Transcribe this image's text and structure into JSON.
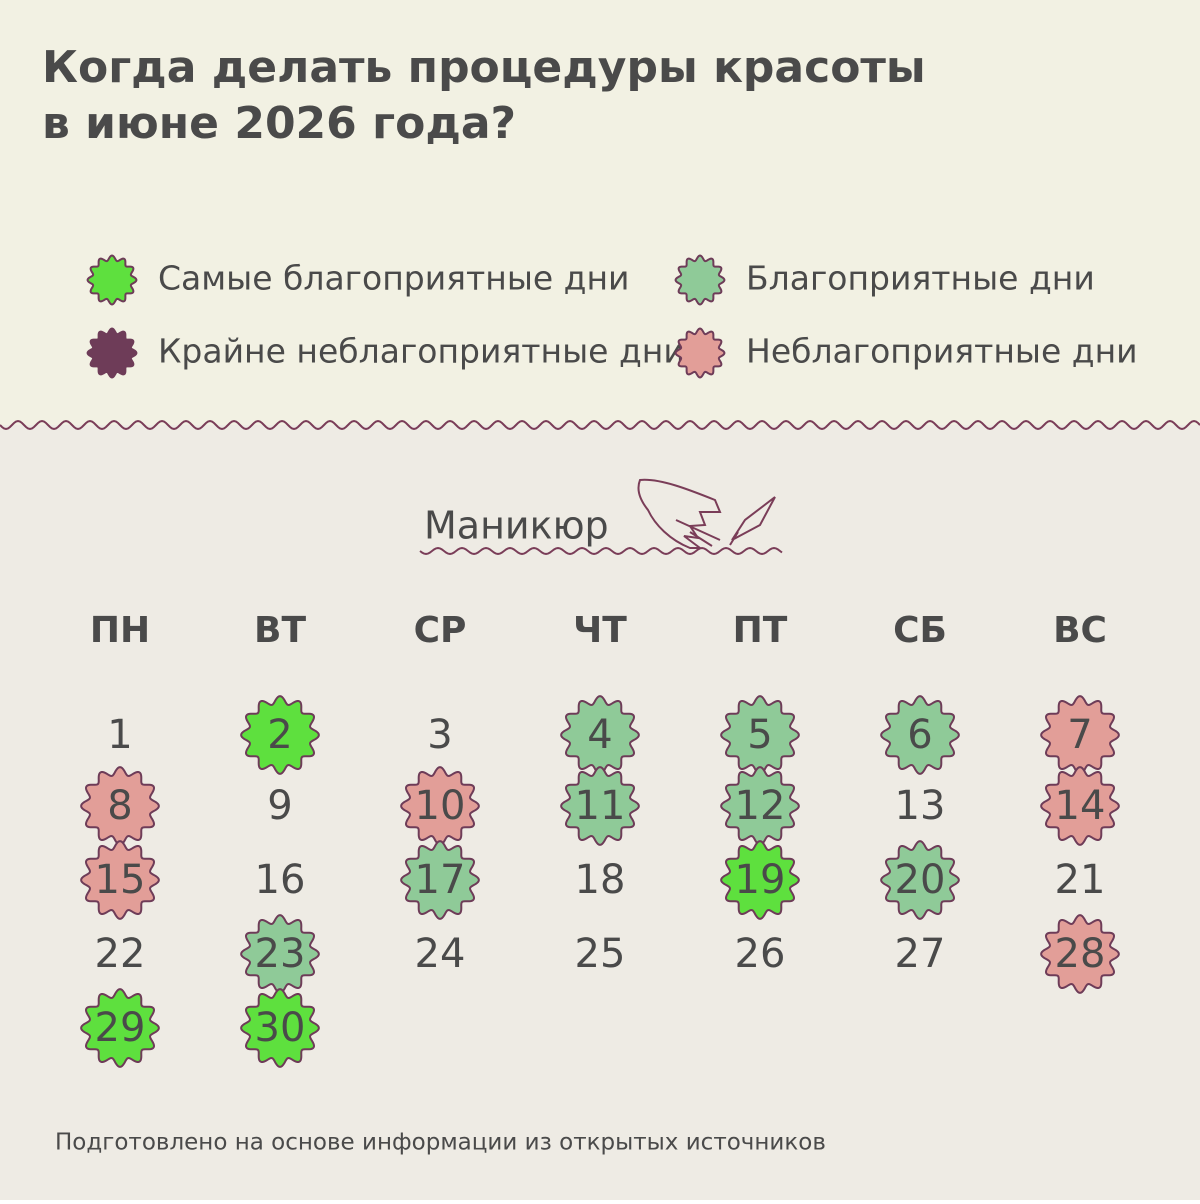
{
  "header": {
    "title": [
      "Когда делать процедуры красоты",
      "в июне 2026 года?"
    ]
  },
  "legend": [
    {
      "label": "Самые благоприятные дни",
      "color": "#5ee03e"
    },
    {
      "label": "Благоприятные дни",
      "color": "#8fca98"
    },
    {
      "label": "Крайне неблагоприятные дни",
      "color": "#6e3c58"
    },
    {
      "label": "Неблагоприятные дни",
      "color": "#e29e98"
    }
  ],
  "section": {
    "title": "Маникюр"
  },
  "weekdays": [
    "ПН",
    "ВТ",
    "СР",
    "ЧТ",
    "ПТ",
    "СБ",
    "ВС"
  ],
  "calendar": {
    "weeks": [
      [
        {
          "day": 1
        },
        {
          "day": 2,
          "color": "#5ee03e"
        },
        {
          "day": 3
        },
        {
          "day": 4,
          "color": "#8fca98"
        },
        {
          "day": 5,
          "color": "#8fca98"
        },
        {
          "day": 6,
          "color": "#8fca98"
        },
        {
          "day": 7,
          "color": "#e29e98"
        }
      ],
      [
        {
          "day": 8,
          "color": "#e29e98"
        },
        {
          "day": 9
        },
        {
          "day": 10,
          "color": "#e29e98"
        },
        {
          "day": 11,
          "color": "#8fca98"
        },
        {
          "day": 12,
          "color": "#8fca98"
        },
        {
          "day": 13
        },
        {
          "day": 14,
          "color": "#e29e98"
        }
      ],
      [
        {
          "day": 15,
          "color": "#e29e98"
        },
        {
          "day": 16
        },
        {
          "day": 17,
          "color": "#8fca98"
        },
        {
          "day": 18
        },
        {
          "day": 19,
          "color": "#5ee03e"
        },
        {
          "day": 20,
          "color": "#8fca98"
        },
        {
          "day": 21
        }
      ],
      [
        {
          "day": 22
        },
        {
          "day": 23,
          "color": "#8fca98"
        },
        {
          "day": 24
        },
        {
          "day": 25
        },
        {
          "day": 26
        },
        {
          "day": 27
        },
        {
          "day": 28,
          "color": "#e29e98"
        }
      ],
      [
        {
          "day": 29,
          "color": "#5ee03e"
        },
        {
          "day": 30,
          "color": "#5ee03e"
        }
      ]
    ]
  },
  "footer": {
    "source": "Подготовлено на основе информации из открытых источников"
  }
}
